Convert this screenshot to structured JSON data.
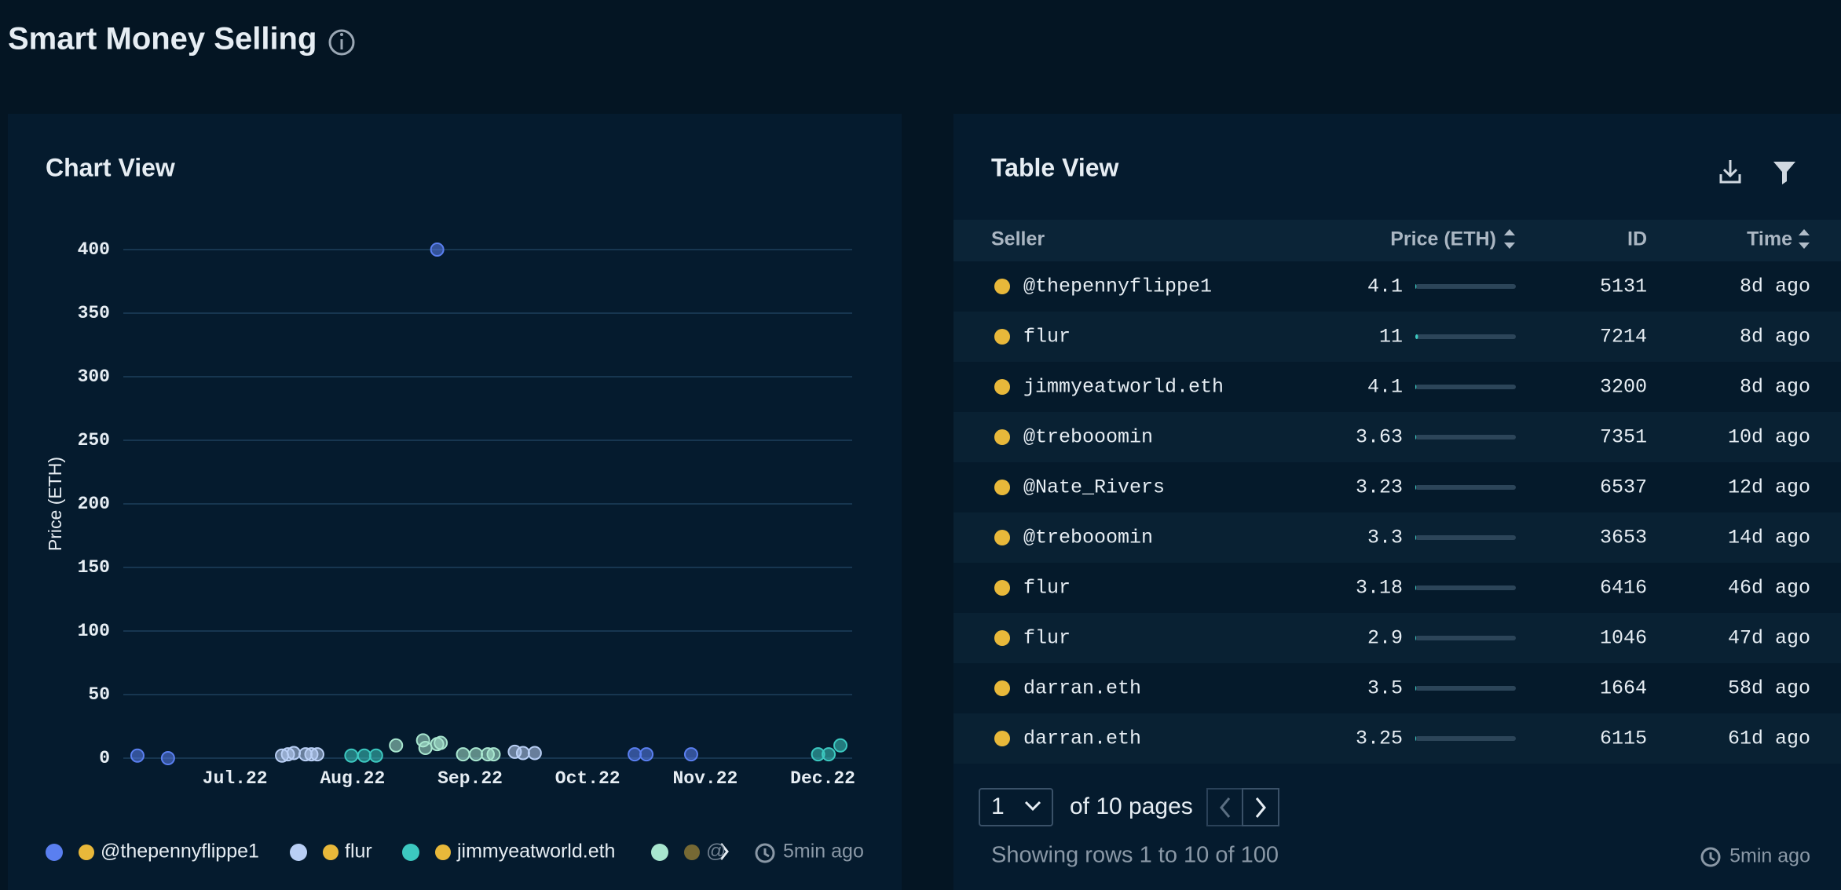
{
  "title": "Smart Money Selling",
  "chart_panel": {
    "title": "Chart View",
    "updated": "5min ago"
  },
  "chart_data": {
    "type": "scatter",
    "y_label": "Price (ETH)",
    "xlim": [
      6.05,
      12.25
    ],
    "ylim": [
      0,
      400
    ],
    "xticks": [
      {
        "value": 7,
        "label": "Jul.22"
      },
      {
        "value": 8,
        "label": "Aug.22"
      },
      {
        "value": 9,
        "label": "Sep.22"
      },
      {
        "value": 10,
        "label": "Oct.22"
      },
      {
        "value": 11,
        "label": "Nov.22"
      },
      {
        "value": 12,
        "label": "Dec.22"
      }
    ],
    "yticks": [
      0,
      50,
      100,
      150,
      200,
      250,
      300,
      350,
      400
    ],
    "grid": true,
    "series": [
      {
        "name": "@thepennyflippe1",
        "color": "#5a7ff0",
        "x": [
          6.17,
          6.43,
          8.72,
          10.4,
          10.5,
          10.88
        ],
        "values": [
          2,
          0,
          400,
          3,
          3,
          3
        ]
      },
      {
        "name": "flur",
        "color": "#b9cff5",
        "x": [
          7.4,
          7.45,
          7.5,
          7.6,
          7.65,
          7.7,
          9.38,
          9.45,
          9.55
        ],
        "values": [
          2,
          3,
          4,
          3,
          3,
          3,
          5,
          4,
          4
        ]
      },
      {
        "name": "jimmyeatworld.eth",
        "color": "#3cc8c0",
        "x": [
          7.99,
          8.1,
          8.2,
          11.96,
          12.05,
          12.15
        ],
        "values": [
          2,
          2,
          2,
          3,
          3,
          10
        ]
      },
      {
        "name": "@",
        "color": "#a8e6cf",
        "x": [
          8.37,
          8.6,
          8.62,
          8.72,
          8.75,
          8.94,
          9.05,
          9.15,
          9.2
        ],
        "values": [
          10,
          14,
          8,
          11,
          12,
          3,
          3,
          3,
          3
        ]
      }
    ]
  },
  "table_panel": {
    "title": "Table View",
    "updated": "5min ago",
    "columns": [
      "Seller",
      "Price (ETH)",
      "ID",
      "Time"
    ],
    "rows": [
      [
        "@thepennyflippe1",
        4.1,
        5131,
        "8d ago"
      ],
      [
        "flur",
        11,
        7214,
        "8d ago"
      ],
      [
        "jimmyeatworld.eth",
        4.1,
        3200,
        "8d ago"
      ],
      [
        "@trebooomin",
        3.63,
        7351,
        "10d ago"
      ],
      [
        "@Nate_Rivers",
        3.23,
        6537,
        "12d ago"
      ],
      [
        "@trebooomin",
        3.3,
        3653,
        "14d ago"
      ],
      [
        "flur",
        3.18,
        6416,
        "46d ago"
      ],
      [
        "flur",
        2.9,
        1046,
        "47d ago"
      ],
      [
        "darran.eth",
        3.5,
        1664,
        "58d ago"
      ],
      [
        "darran.eth",
        3.25,
        6115,
        "61d ago"
      ]
    ],
    "page": 1,
    "pages": "of 10 pages",
    "showing": "Showing rows 1 to 10 of 100"
  }
}
